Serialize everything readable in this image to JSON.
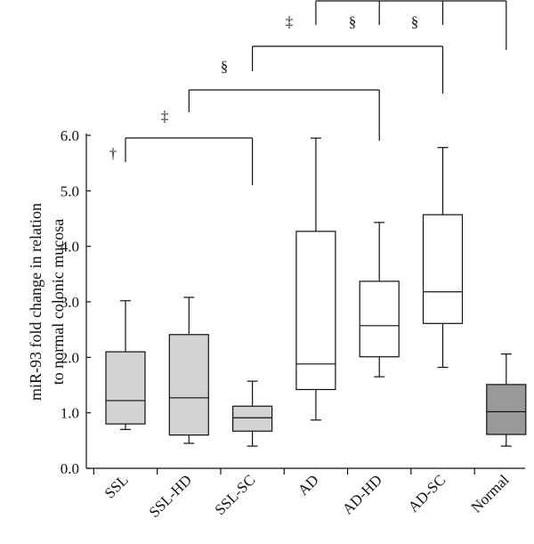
{
  "chart_data": {
    "type": "box",
    "ylabel_line1": "miR-93 fold change in relation",
    "ylabel_line2": "to normal colonic mucosa",
    "ylim": [
      0,
      6
    ],
    "yticks": [
      "0.0",
      "1.0",
      "2.0",
      "3.0",
      "4.0",
      "5.0",
      "6.0"
    ],
    "ytick_values": [
      0,
      1,
      2,
      3,
      4,
      5,
      6
    ],
    "categories": [
      "SSL",
      "SSL-HD",
      "SSL-SC",
      "AD",
      "AD-HD",
      "AD-SC",
      "Normal"
    ],
    "boxes": [
      {
        "name": "SSL",
        "whisker_low": 0.7,
        "q1": 0.8,
        "median": 1.22,
        "q3": 2.1,
        "whisker_high": 3.02,
        "color": "#d3d3d3"
      },
      {
        "name": "SSL-HD",
        "whisker_low": 0.45,
        "q1": 0.6,
        "median": 1.27,
        "q3": 2.41,
        "whisker_high": 3.08,
        "color": "#d3d3d3"
      },
      {
        "name": "SSL-SC",
        "whisker_low": 0.4,
        "q1": 0.67,
        "median": 0.91,
        "q3": 1.12,
        "whisker_high": 1.57,
        "color": "#d3d3d3"
      },
      {
        "name": "AD",
        "whisker_low": 0.87,
        "q1": 1.42,
        "median": 1.88,
        "q3": 4.27,
        "whisker_high": 5.95,
        "color": "#ffffff"
      },
      {
        "name": "AD-HD",
        "whisker_low": 1.65,
        "q1": 2.01,
        "median": 2.57,
        "q3": 3.37,
        "whisker_high": 4.43,
        "color": "#ffffff"
      },
      {
        "name": "AD-SC",
        "whisker_low": 1.82,
        "q1": 2.61,
        "median": 3.18,
        "q3": 4.57,
        "whisker_high": 5.78,
        "color": "#ffffff"
      },
      {
        "name": "Normal",
        "whisker_low": 0.4,
        "q1": 0.61,
        "median": 1.02,
        "q3": 1.51,
        "whisker_high": 2.06,
        "color": "#999999"
      }
    ],
    "significance": [
      {
        "symbol": "†",
        "from": "SSL",
        "to": "SSL-SC"
      },
      {
        "symbol": "‡",
        "from": "SSL-HD",
        "to": "AD-HD"
      },
      {
        "symbol": "§",
        "from": "SSL-SC",
        "to": "AD-SC"
      },
      {
        "symbol": "‡",
        "from": "AD",
        "to": "Normal"
      },
      {
        "symbol": "§",
        "from": "AD-HD",
        "to": "Normal"
      },
      {
        "symbol": "§",
        "from": "AD-SC",
        "to": "Normal"
      }
    ],
    "grid": false,
    "legend": "none"
  }
}
